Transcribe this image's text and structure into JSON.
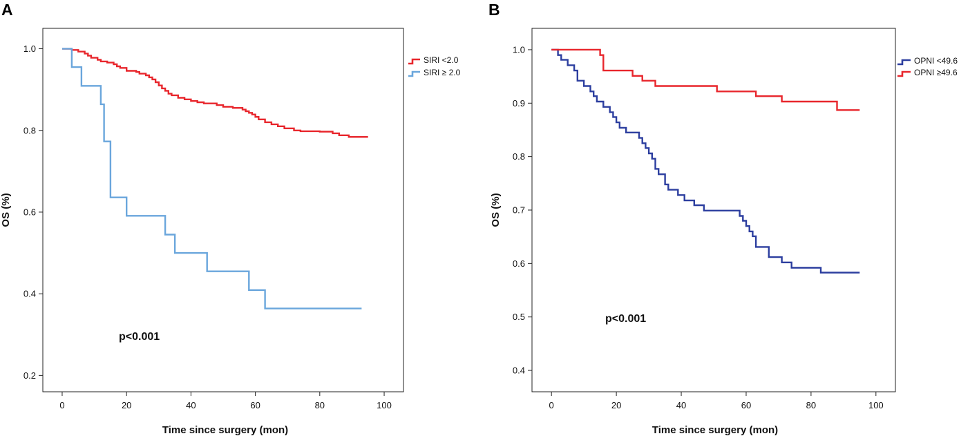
{
  "figure": {
    "panel_letters": [
      "A",
      "B"
    ]
  },
  "chart_data": [
    {
      "type": "line",
      "subtype": "kaplan-meier-step",
      "panel": "A",
      "xlabel": "Time since surgery (mon)",
      "ylabel": "OS (%)",
      "xlim": [
        -6,
        106
      ],
      "ylim": [
        0.16,
        1.05
      ],
      "xticks": [
        0,
        20,
        40,
        60,
        80,
        100
      ],
      "yticks": [
        0.2,
        0.4,
        0.6,
        0.8,
        1.0
      ],
      "ytick_labels": [
        "0.2",
        "0.4",
        "0.6",
        "0.8",
        "1.0"
      ],
      "annotation": "p<0.001",
      "legend_position": "top-right",
      "series": [
        {
          "name": "SIRI <2.0",
          "color": "#e8262c",
          "points": [
            [
              0,
              1.0
            ],
            [
              3,
              0.997
            ],
            [
              5,
              0.993
            ],
            [
              7,
              0.988
            ],
            [
              8,
              0.983
            ],
            [
              9,
              0.978
            ],
            [
              11,
              0.973
            ],
            [
              12,
              0.969
            ],
            [
              14,
              0.966
            ],
            [
              16,
              0.962
            ],
            [
              17,
              0.957
            ],
            [
              18,
              0.953
            ],
            [
              20,
              0.946
            ],
            [
              23,
              0.943
            ],
            [
              24,
              0.939
            ],
            [
              26,
              0.935
            ],
            [
              27,
              0.93
            ],
            [
              28,
              0.925
            ],
            [
              29,
              0.918
            ],
            [
              30,
              0.91
            ],
            [
              31,
              0.903
            ],
            [
              32,
              0.897
            ],
            [
              33,
              0.89
            ],
            [
              34,
              0.886
            ],
            [
              36,
              0.88
            ],
            [
              38,
              0.876
            ],
            [
              40,
              0.872
            ],
            [
              42,
              0.869
            ],
            [
              44,
              0.866
            ],
            [
              48,
              0.862
            ],
            [
              50,
              0.858
            ],
            [
              53,
              0.855
            ],
            [
              56,
              0.851
            ],
            [
              57,
              0.847
            ],
            [
              58,
              0.843
            ],
            [
              59,
              0.839
            ],
            [
              60,
              0.833
            ],
            [
              61,
              0.827
            ],
            [
              63,
              0.82
            ],
            [
              65,
              0.815
            ],
            [
              67,
              0.81
            ],
            [
              69,
              0.805
            ],
            [
              72,
              0.8
            ],
            [
              74,
              0.798
            ],
            [
              80,
              0.797
            ],
            [
              84,
              0.793
            ],
            [
              86,
              0.788
            ],
            [
              89,
              0.784
            ],
            [
              95,
              0.784
            ]
          ]
        },
        {
          "name": "SIRI ≥ 2.0",
          "color": "#6aa6dc",
          "points": [
            [
              0,
              1.0
            ],
            [
              3,
              1.0
            ],
            [
              3,
              0.955
            ],
            [
              6,
              0.909
            ],
            [
              12,
              0.864
            ],
            [
              13,
              0.773
            ],
            [
              15,
              0.636
            ],
            [
              20,
              0.591
            ],
            [
              32,
              0.545
            ],
            [
              35,
              0.5
            ],
            [
              45,
              0.455
            ],
            [
              58,
              0.409
            ],
            [
              63,
              0.364
            ],
            [
              93,
              0.364
            ]
          ]
        }
      ]
    },
    {
      "type": "line",
      "subtype": "kaplan-meier-step",
      "panel": "B",
      "xlabel": "Time since surgery (mon)",
      "ylabel": "OS (%)",
      "xlim": [
        -6,
        106
      ],
      "ylim": [
        0.36,
        1.04
      ],
      "xticks": [
        0,
        20,
        40,
        60,
        80,
        100
      ],
      "yticks": [
        0.4,
        0.5,
        0.6,
        0.7,
        0.8,
        0.9,
        1.0
      ],
      "ytick_labels": [
        "0.4",
        "0.5",
        "0.6",
        "0.7",
        "0.8",
        "0.9",
        "1.0"
      ],
      "annotation": "p<0.001",
      "legend_position": "top-right",
      "series": [
        {
          "name": "OPNI <49.6",
          "color": "#2c3e9f",
          "points": [
            [
              0,
              1.0
            ],
            [
              2,
              0.99
            ],
            [
              3,
              0.981
            ],
            [
              5,
              0.971
            ],
            [
              7,
              0.961
            ],
            [
              8,
              0.942
            ],
            [
              10,
              0.932
            ],
            [
              12,
              0.922
            ],
            [
              13,
              0.913
            ],
            [
              14,
              0.903
            ],
            [
              16,
              0.893
            ],
            [
              18,
              0.883
            ],
            [
              19,
              0.874
            ],
            [
              20,
              0.864
            ],
            [
              21,
              0.854
            ],
            [
              23,
              0.845
            ],
            [
              27,
              0.835
            ],
            [
              28,
              0.825
            ],
            [
              29,
              0.816
            ],
            [
              30,
              0.806
            ],
            [
              31,
              0.796
            ],
            [
              32,
              0.777
            ],
            [
              33,
              0.767
            ],
            [
              35,
              0.748
            ],
            [
              36,
              0.738
            ],
            [
              39,
              0.728
            ],
            [
              41,
              0.718
            ],
            [
              44,
              0.709
            ],
            [
              47,
              0.699
            ],
            [
              52,
              0.699
            ],
            [
              57,
              0.699
            ],
            [
              58,
              0.689
            ],
            [
              59,
              0.68
            ],
            [
              60,
              0.67
            ],
            [
              61,
              0.66
            ],
            [
              62,
              0.651
            ],
            [
              63,
              0.631
            ],
            [
              67,
              0.612
            ],
            [
              71,
              0.602
            ],
            [
              74,
              0.592
            ],
            [
              83,
              0.583
            ],
            [
              95,
              0.583
            ]
          ]
        },
        {
          "name": "OPNI ≥49.6",
          "color": "#e8262c",
          "points": [
            [
              0,
              1.0
            ],
            [
              14,
              1.0
            ],
            [
              15,
              0.99
            ],
            [
              16,
              0.961
            ],
            [
              25,
              0.951
            ],
            [
              28,
              0.942
            ],
            [
              32,
              0.932
            ],
            [
              51,
              0.922
            ],
            [
              63,
              0.913
            ],
            [
              71,
              0.903
            ],
            [
              88,
              0.887
            ],
            [
              95,
              0.887
            ]
          ]
        }
      ]
    }
  ]
}
